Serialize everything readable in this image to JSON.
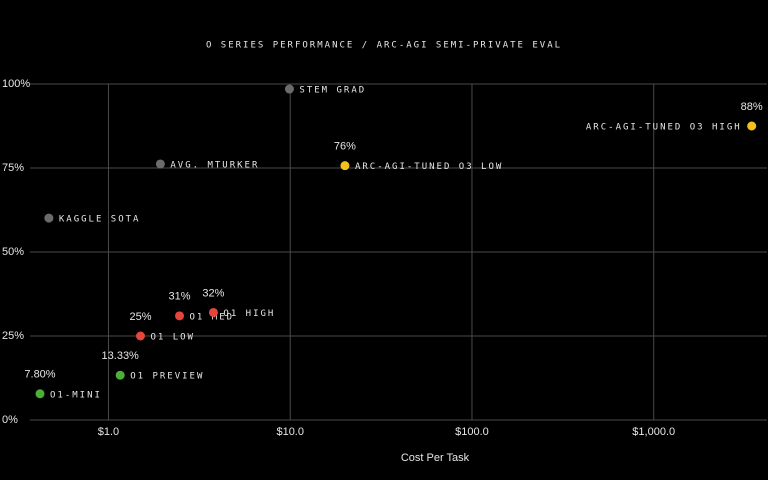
{
  "chart_data": {
    "type": "scatter",
    "title": "O SERIES PERFORMANCE / ARC-AGI SEMI-PRIVATE EVAL",
    "x_label": "Cost Per Task",
    "x_scale": "log",
    "grid": true,
    "xlim": [
      0.37,
      4200
    ],
    "ylim": [
      0,
      100
    ],
    "xticks": [
      {
        "value": 1,
        "label": "$1.0"
      },
      {
        "value": 10,
        "label": "$10.0"
      },
      {
        "value": 100,
        "label": "$100.0"
      },
      {
        "value": 1000,
        "label": "$1,000.0"
      }
    ],
    "yticks": [
      {
        "value": 0,
        "label": "0%"
      },
      {
        "value": 25,
        "label": "25%"
      },
      {
        "value": 50,
        "label": "50%"
      },
      {
        "value": 75,
        "label": "75%"
      },
      {
        "value": 100,
        "label": "100%"
      }
    ],
    "points": [
      {
        "label": "STEM GRAD",
        "x": 9.9,
        "y": 98.5,
        "color": "#6b6b6b"
      },
      {
        "label": "AVG. MTURKER",
        "x": 1.93,
        "y": 76.2,
        "color": "#6b6b6b"
      },
      {
        "label": "KAGGLE SOTA",
        "x": 0.47,
        "y": 60.1,
        "color": "#6b6b6b"
      },
      {
        "label": "ARC-AGI-TUNED O3 LOW",
        "x": 20,
        "y": 75.7,
        "value_label": "76%",
        "color": "#f2c21b"
      },
      {
        "label": "ARC-AGI-TUNED O3 HIGH",
        "x": 3460,
        "y": 87.5,
        "value_label": "88%",
        "color": "#f2c21b"
      },
      {
        "label": "O1 LOW",
        "x": 1.5,
        "y": 25,
        "value_label": "25%",
        "color": "#e5453c"
      },
      {
        "label": "O1 MED",
        "x": 2.46,
        "y": 31,
        "value_label": "31%",
        "color": "#e5453c"
      },
      {
        "label": "O1 HIGH",
        "x": 3.78,
        "y": 32,
        "value_label": "32%",
        "color": "#e5453c"
      },
      {
        "label": "O1 PREVIEW",
        "x": 1.16,
        "y": 13.33,
        "value_label": "13.33%",
        "color": "#4cb035"
      },
      {
        "label": "O1-MINI",
        "x": 0.42,
        "y": 7.8,
        "value_label": "7.80%",
        "color": "#4cb035"
      }
    ]
  }
}
